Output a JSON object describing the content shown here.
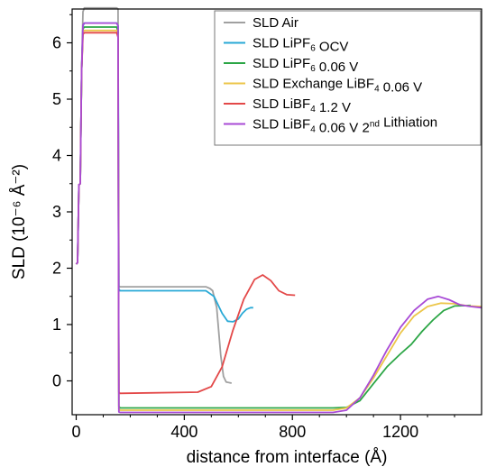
{
  "chart_data": {
    "type": "line",
    "xlabel": "distance from interface (Å)",
    "ylabel": "SLD (10⁻⁶ Å⁻²)",
    "xlim": [
      -15,
      1500
    ],
    "ylim": [
      -0.6,
      6.6
    ],
    "x_ticks": [
      0,
      400,
      800,
      1200
    ],
    "y_ticks": [
      0,
      1,
      2,
      3,
      4,
      5,
      6
    ],
    "grid": false,
    "legend_position": "top-right",
    "series": [
      {
        "name": "SLD Air",
        "name_parts": [
          [
            "SLD Air",
            ""
          ]
        ],
        "color": "#a0a0a0",
        "points": [
          [
            0,
            2.07
          ],
          [
            5,
            2.1
          ],
          [
            10,
            3.48
          ],
          [
            15,
            3.5
          ],
          [
            20,
            5.5
          ],
          [
            25,
            6.55
          ],
          [
            30,
            6.62
          ],
          [
            150,
            6.62
          ],
          [
            155,
            6.6
          ],
          [
            158,
            1.68
          ],
          [
            162,
            1.67
          ],
          [
            480,
            1.67
          ],
          [
            495,
            1.64
          ],
          [
            505,
            1.6
          ],
          [
            520,
            1.3
          ],
          [
            535,
            0.45
          ],
          [
            545,
            0.08
          ],
          [
            555,
            -0.02
          ],
          [
            575,
            -0.04
          ]
        ]
      },
      {
        "name": "SLD LiPF6 OCV",
        "name_parts": [
          [
            "SLD LiPF",
            ""
          ],
          [
            "6",
            "sub"
          ],
          [
            " OCV",
            ""
          ]
        ],
        "color": "#29a9d6",
        "points": [
          [
            0,
            2.07
          ],
          [
            5,
            2.1
          ],
          [
            10,
            3.48
          ],
          [
            15,
            3.5
          ],
          [
            20,
            5.5
          ],
          [
            25,
            6.3
          ],
          [
            30,
            6.35
          ],
          [
            150,
            6.35
          ],
          [
            155,
            6.3
          ],
          [
            158,
            1.63
          ],
          [
            162,
            1.6
          ],
          [
            480,
            1.6
          ],
          [
            510,
            1.5
          ],
          [
            540,
            1.2
          ],
          [
            560,
            1.06
          ],
          [
            580,
            1.05
          ],
          [
            600,
            1.1
          ],
          [
            615,
            1.2
          ],
          [
            630,
            1.27
          ],
          [
            645,
            1.3
          ],
          [
            655,
            1.3
          ]
        ]
      },
      {
        "name": "SLD LiPF6 0.06 V",
        "name_parts": [
          [
            "SLD LiPF",
            ""
          ],
          [
            "6",
            "sub"
          ],
          [
            " 0.06 V",
            ""
          ]
        ],
        "color": "#2ca646",
        "points": [
          [
            0,
            2.07
          ],
          [
            5,
            2.1
          ],
          [
            10,
            3.48
          ],
          [
            15,
            3.5
          ],
          [
            20,
            5.5
          ],
          [
            25,
            6.25
          ],
          [
            30,
            6.28
          ],
          [
            150,
            6.28
          ],
          [
            155,
            6.2
          ],
          [
            158,
            -0.45
          ],
          [
            162,
            -0.48
          ],
          [
            950,
            -0.48
          ],
          [
            1000,
            -0.47
          ],
          [
            1050,
            -0.35
          ],
          [
            1100,
            -0.05
          ],
          [
            1150,
            0.25
          ],
          [
            1200,
            0.48
          ],
          [
            1240,
            0.65
          ],
          [
            1280,
            0.88
          ],
          [
            1320,
            1.08
          ],
          [
            1360,
            1.25
          ],
          [
            1400,
            1.33
          ],
          [
            1460,
            1.34
          ]
        ]
      },
      {
        "name": "SLD Exchange LiBF4 0.06 V",
        "name_parts": [
          [
            "SLD Exchange LiBF",
            ""
          ],
          [
            "4",
            "sub"
          ],
          [
            " 0.06 V",
            ""
          ]
        ],
        "color": "#ecc64a",
        "points": [
          [
            0,
            2.07
          ],
          [
            5,
            2.1
          ],
          [
            10,
            3.48
          ],
          [
            15,
            3.5
          ],
          [
            20,
            5.5
          ],
          [
            25,
            6.2
          ],
          [
            30,
            6.22
          ],
          [
            150,
            6.22
          ],
          [
            155,
            6.15
          ],
          [
            158,
            -0.5
          ],
          [
            162,
            -0.52
          ],
          [
            950,
            -0.52
          ],
          [
            1000,
            -0.48
          ],
          [
            1050,
            -0.3
          ],
          [
            1100,
            0.05
          ],
          [
            1150,
            0.45
          ],
          [
            1200,
            0.85
          ],
          [
            1250,
            1.15
          ],
          [
            1300,
            1.32
          ],
          [
            1350,
            1.38
          ],
          [
            1400,
            1.37
          ],
          [
            1450,
            1.33
          ],
          [
            1500,
            1.32
          ]
        ]
      },
      {
        "name": "SLD LiBF4 1.2 V",
        "name_parts": [
          [
            "SLD LiBF",
            ""
          ],
          [
            "4",
            "sub"
          ],
          [
            " 1.2 V",
            ""
          ]
        ],
        "color": "#e34848",
        "points": [
          [
            0,
            2.07
          ],
          [
            5,
            2.1
          ],
          [
            10,
            3.48
          ],
          [
            15,
            3.5
          ],
          [
            20,
            5.5
          ],
          [
            25,
            6.15
          ],
          [
            30,
            6.18
          ],
          [
            150,
            6.18
          ],
          [
            155,
            6.1
          ],
          [
            158,
            -0.2
          ],
          [
            162,
            -0.22
          ],
          [
            450,
            -0.2
          ],
          [
            500,
            -0.1
          ],
          [
            540,
            0.25
          ],
          [
            580,
            0.9
          ],
          [
            620,
            1.45
          ],
          [
            660,
            1.8
          ],
          [
            690,
            1.88
          ],
          [
            720,
            1.78
          ],
          [
            750,
            1.6
          ],
          [
            780,
            1.53
          ],
          [
            810,
            1.52
          ]
        ]
      },
      {
        "name": "SLD LiBF4 0.06 V 2nd Lithiation",
        "name_parts": [
          [
            "SLD LiBF",
            ""
          ],
          [
            "4",
            "sub"
          ],
          [
            " 0.06 V 2",
            ""
          ],
          [
            "nd",
            "sup"
          ],
          [
            " Lithiation",
            ""
          ]
        ],
        "color": "#a84ad6",
        "points": [
          [
            0,
            2.07
          ],
          [
            5,
            2.1
          ],
          [
            10,
            3.48
          ],
          [
            15,
            3.5
          ],
          [
            20,
            5.5
          ],
          [
            25,
            6.32
          ],
          [
            30,
            6.35
          ],
          [
            150,
            6.35
          ],
          [
            155,
            6.3
          ],
          [
            158,
            -0.55
          ],
          [
            162,
            -0.56
          ],
          [
            950,
            -0.56
          ],
          [
            1000,
            -0.52
          ],
          [
            1050,
            -0.3
          ],
          [
            1100,
            0.1
          ],
          [
            1150,
            0.55
          ],
          [
            1200,
            0.95
          ],
          [
            1250,
            1.25
          ],
          [
            1300,
            1.45
          ],
          [
            1340,
            1.5
          ],
          [
            1380,
            1.44
          ],
          [
            1420,
            1.35
          ],
          [
            1460,
            1.32
          ],
          [
            1500,
            1.3
          ]
        ]
      }
    ]
  }
}
